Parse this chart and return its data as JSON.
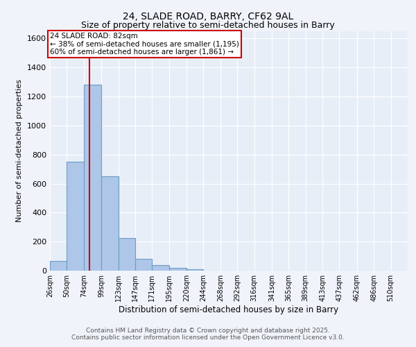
{
  "title1": "24, SLADE ROAD, BARRY, CF62 9AL",
  "title2": "Size of property relative to semi-detached houses in Barry",
  "xlabel": "Distribution of semi-detached houses by size in Barry",
  "ylabel": "Number of semi-detached properties",
  "bin_labels": [
    "26sqm",
    "50sqm",
    "74sqm",
    "99sqm",
    "123sqm",
    "147sqm",
    "171sqm",
    "195sqm",
    "220sqm",
    "244sqm",
    "268sqm",
    "292sqm",
    "316sqm",
    "341sqm",
    "365sqm",
    "389sqm",
    "413sqm",
    "437sqm",
    "462sqm",
    "486sqm",
    "510sqm"
  ],
  "bin_edges": [
    26,
    50,
    74,
    99,
    123,
    147,
    171,
    195,
    220,
    244,
    268,
    292,
    316,
    341,
    365,
    389,
    413,
    437,
    462,
    486,
    510
  ],
  "bar_heights": [
    65,
    750,
    1280,
    650,
    225,
    80,
    40,
    20,
    10,
    0,
    0,
    0,
    0,
    0,
    0,
    0,
    0,
    0,
    0,
    0,
    0
  ],
  "bar_color": "#aec6e8",
  "bar_edge_color": "#6a9ec5",
  "red_line_x": 82,
  "annotation_title": "24 SLADE ROAD: 82sqm",
  "annotation_line1": "← 38% of semi-detached houses are smaller (1,195)",
  "annotation_line2": "60% of semi-detached houses are larger (1,861) →",
  "annotation_box_color": "#ffffff",
  "annotation_box_edge": "#cc0000",
  "ylim": [
    0,
    1650
  ],
  "yticks": [
    0,
    200,
    400,
    600,
    800,
    1000,
    1200,
    1400,
    1600
  ],
  "footer1": "Contains HM Land Registry data © Crown copyright and database right 2025.",
  "footer2": "Contains public sector information licensed under the Open Government Licence v3.0.",
  "bg_color": "#f0f4fa",
  "plot_bg_color": "#e8eef8",
  "grid_color": "#ffffff",
  "last_bar_width": 24
}
